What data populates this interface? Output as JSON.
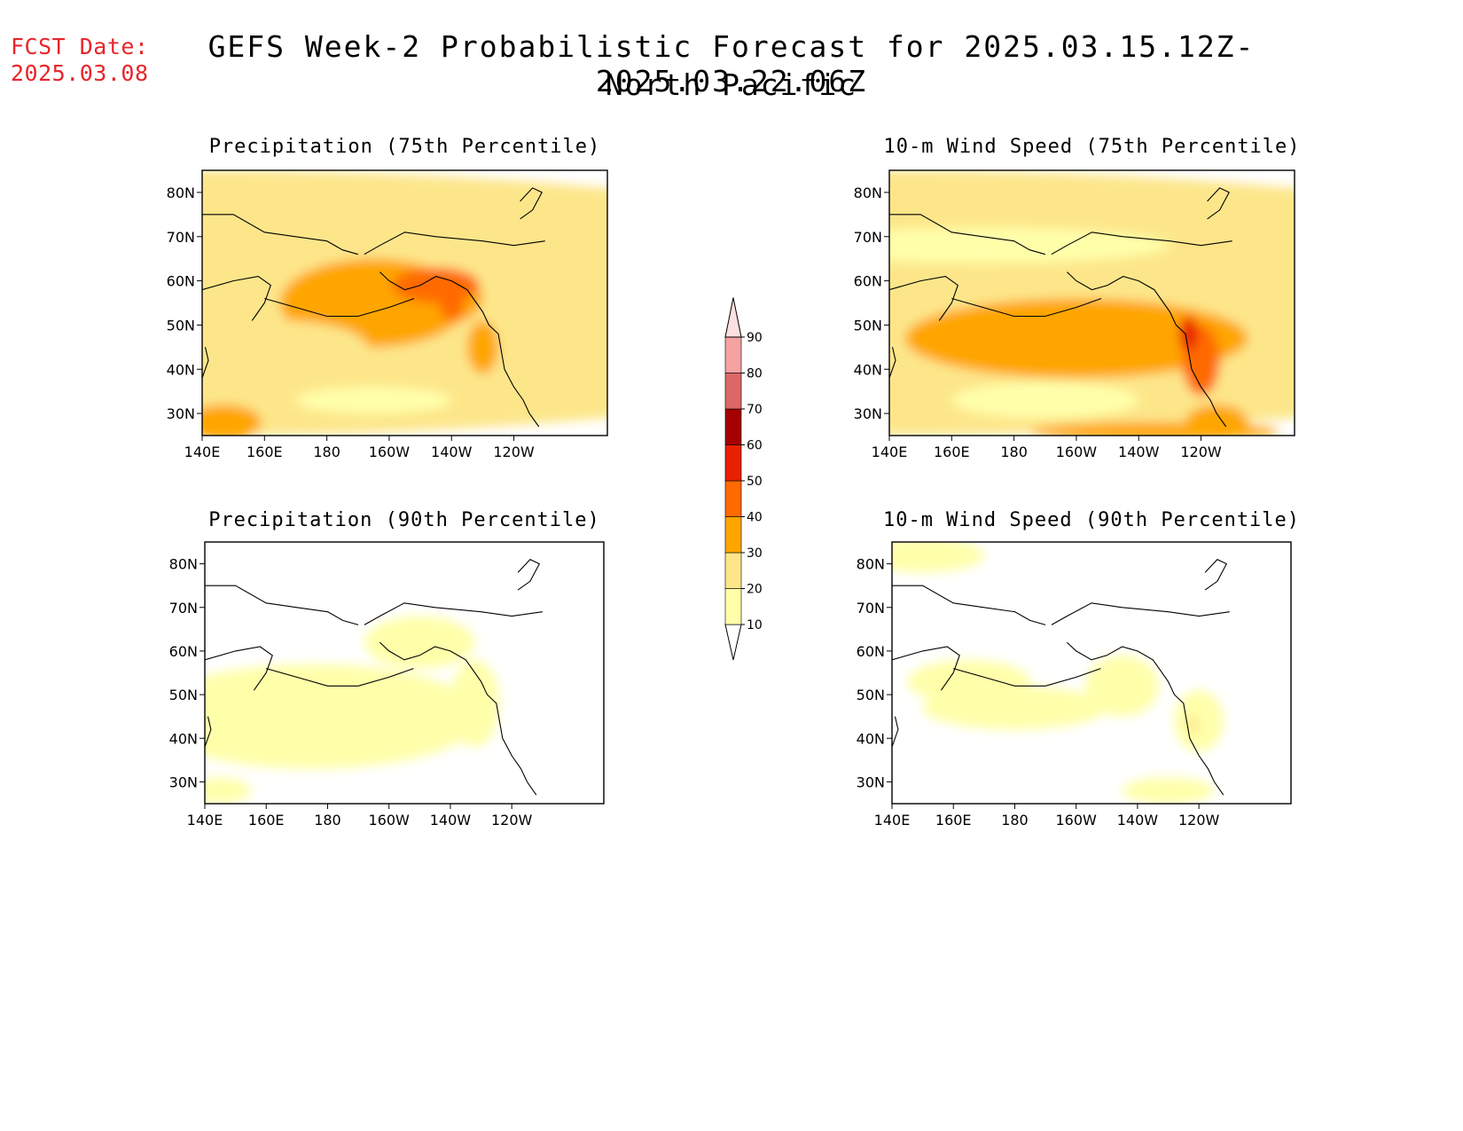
{
  "fcst": {
    "label": "FCST Date:",
    "date": "2025.03.08"
  },
  "title": {
    "line1": "GEFS Week-2 Probabilistic Forecast for 2025.03.15.12Z-2025.03.22.06Z",
    "line2": "North Pacific"
  },
  "axes": {
    "lon_ticks": [
      "140E",
      "160E",
      "180",
      "160W",
      "140W",
      "120W"
    ],
    "lat_ticks": [
      "80N",
      "70N",
      "60N",
      "50N",
      "40N",
      "30N"
    ]
  },
  "panels": [
    {
      "title": "Precipitation (75th Percentile)",
      "intensity": 3.0
    },
    {
      "title": "10-m Wind Speed (75th Percentile)",
      "intensity": 3.2
    },
    {
      "title": "Precipitation (90th Percentile)",
      "intensity": 1.0
    },
    {
      "title": "10-m Wind Speed (90th Percentile)",
      "intensity": 0.9
    }
  ],
  "colorbar": {
    "levels": [
      "10",
      "20",
      "30",
      "40",
      "50",
      "60",
      "70",
      "80",
      "90"
    ],
    "colors": [
      "#ffffaa",
      "#fde68a",
      "#ffa500",
      "#ff6a00",
      "#e82000",
      "#a50000",
      "#dd6666",
      "#f4a2a2",
      "#fde0e0"
    ]
  }
}
